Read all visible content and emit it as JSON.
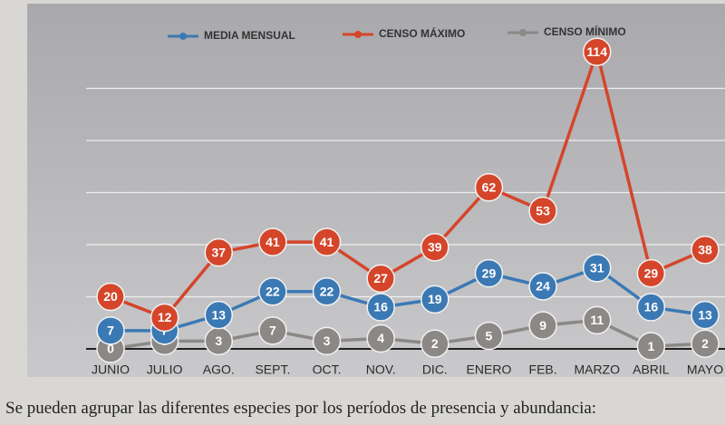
{
  "chart_data": {
    "type": "line",
    "categories": [
      "JUNIO",
      "JULIO",
      "AGO.",
      "SEPT.",
      "OCT.",
      "NOV.",
      "DIC.",
      "ENERO",
      "FEB.",
      "MARZO",
      "ABRIL",
      "MAYO"
    ],
    "series": [
      {
        "name": "MEDIA MENSUAL",
        "color": "#3b79b4",
        "values": [
          7,
          7,
          13,
          22,
          22,
          16,
          19,
          29,
          24,
          31,
          16,
          13
        ]
      },
      {
        "name": "CENSO MÁXIMO",
        "color": "#d5452a",
        "values": [
          20,
          12,
          37,
          41,
          41,
          27,
          39,
          62,
          53,
          114,
          29,
          38
        ]
      },
      {
        "name": "CENSO MÍNIMO",
        "color": "#8b8886",
        "values": [
          0,
          3,
          3,
          7,
          3,
          4,
          2,
          5,
          9,
          11,
          1,
          2
        ]
      }
    ],
    "ylim": [
      0,
      120
    ],
    "yticks": [
      0,
      20,
      40,
      60,
      80,
      100
    ],
    "grid": true,
    "legend": "top"
  },
  "caption": "Se pueden agrupar las diferentes especies por los períodos de presencia y abundancia:"
}
